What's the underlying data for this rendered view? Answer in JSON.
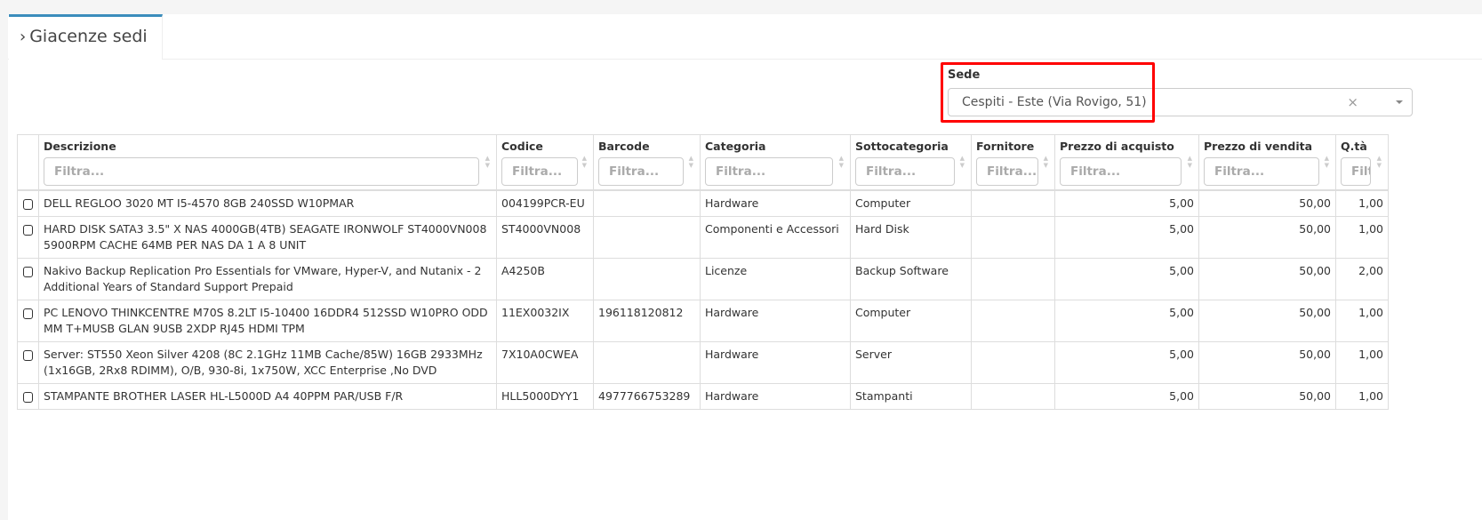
{
  "tab": {
    "title": "Giacenze sedi"
  },
  "sede": {
    "label": "Sede",
    "value": "Cespiti - Este (Via Rovigo, 51)",
    "clear": "×"
  },
  "table": {
    "filter_placeholder": "Filtra...",
    "columns": [
      "Descrizione",
      "Codice",
      "Barcode",
      "Categoria",
      "Sottocategoria",
      "Fornitore",
      "Prezzo di acquisto",
      "Prezzo di vendita",
      "Q.tà"
    ],
    "rows": [
      [
        "DELL REGLOO 3020 MT I5-4570 8GB 240SSD W10PMAR",
        "004199PCR-EU",
        "",
        "Hardware",
        "Computer",
        "",
        "5,00",
        "50,00",
        "1,00"
      ],
      [
        "HARD DISK SATA3 3.5\" X NAS 4000GB(4TB) SEAGATE IRONWOLF ST4000VN008 5900RPM CACHE 64MB PER NAS DA 1 A 8 UNIT",
        "ST4000VN008",
        "",
        "Componenti e Accessori",
        "Hard Disk",
        "",
        "5,00",
        "50,00",
        "1,00"
      ],
      [
        "Nakivo Backup Replication Pro Essentials for VMware, Hyper-V, and Nutanix - 2 Additional Years of Standard Support Prepaid",
        "A4250B",
        "",
        "Licenze",
        "Backup Software",
        "",
        "5,00",
        "50,00",
        "2,00"
      ],
      [
        "PC LENOVO THINKCENTRE M70S 8.2LT I5-10400 16DDR4 512SSD W10PRO ODD MM T+MUSB GLAN 9USB 2XDP RJ45 HDMI TPM",
        "11EX0032IX",
        "196118120812",
        "Hardware",
        "Computer",
        "",
        "5,00",
        "50,00",
        "1,00"
      ],
      [
        "Server: ST550 Xeon Silver 4208 (8C 2.1GHz 11MB Cache/85W) 16GB 2933MHz (1x16GB, 2Rx8 RDIMM), O/B, 930-8i, 1x750W, XCC Enterprise ,No DVD",
        "7X10A0CWEA",
        "",
        "Hardware",
        "Server",
        "",
        "5,00",
        "50,00",
        "1,00"
      ],
      [
        "STAMPANTE BROTHER LASER HL-L5000D A4 40PPM PAR/USB F/R",
        "HLL5000DYY1",
        "4977766753289",
        "Hardware",
        "Stampanti",
        "",
        "5,00",
        "50,00",
        "1,00"
      ]
    ]
  },
  "colors": {
    "accent": "#3c8dbc",
    "highlight": "#ff0000"
  }
}
